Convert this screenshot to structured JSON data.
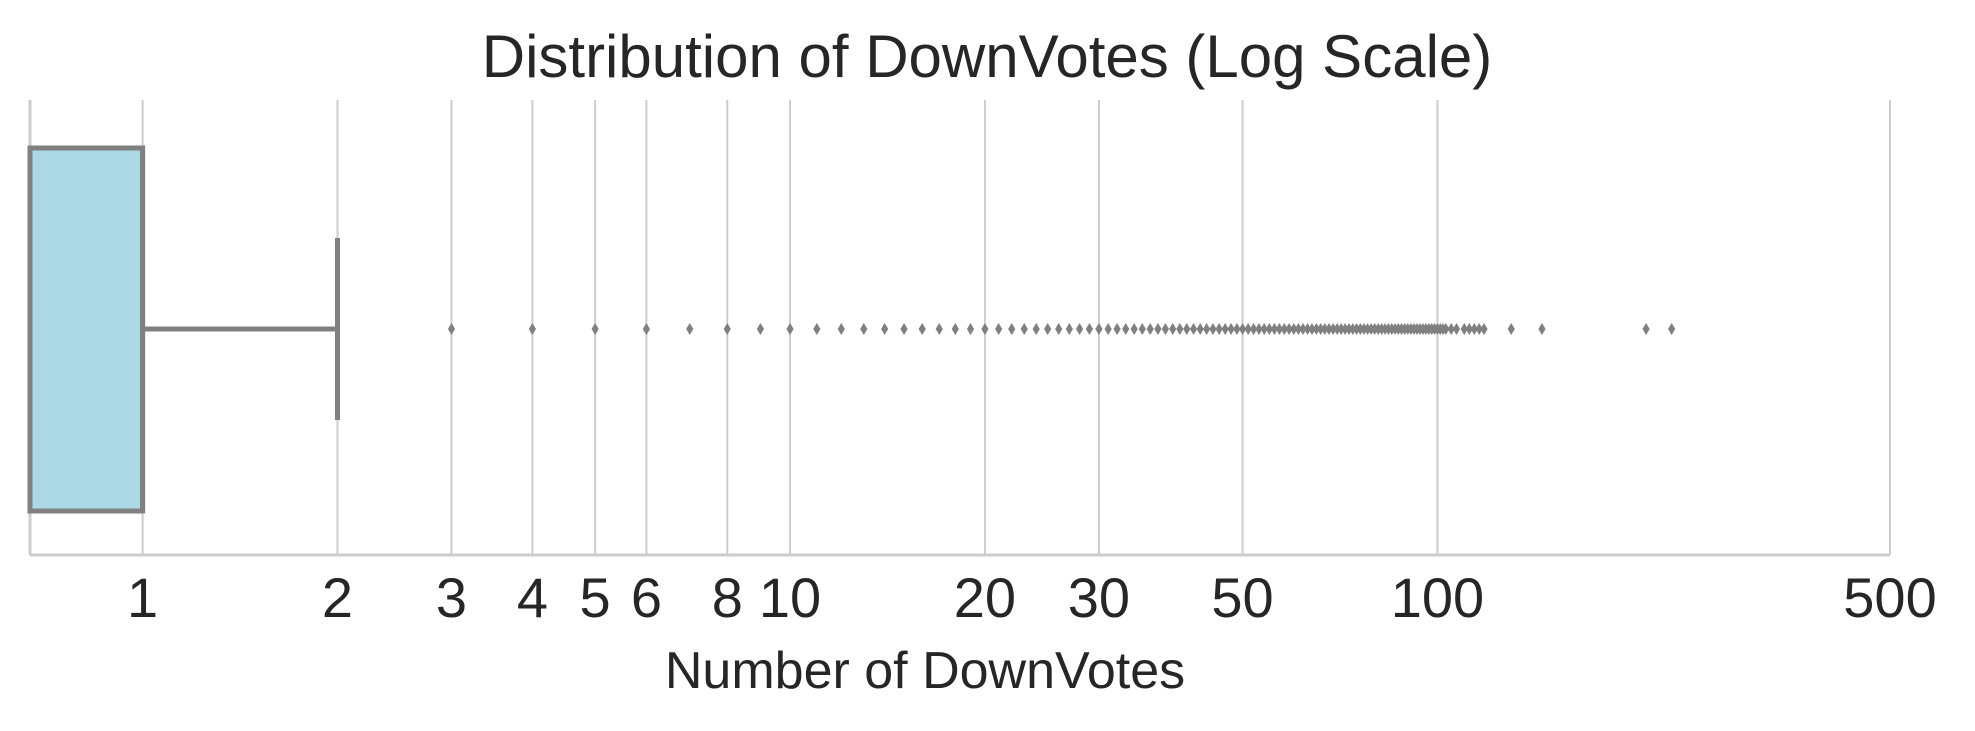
{
  "chart_data": {
    "type": "box",
    "title": "Distribution of DownVotes (Log Scale)",
    "xlabel": "Number of DownVotes",
    "ylabel": "",
    "x_scale": "log",
    "xlim": [
      0.67,
      500
    ],
    "grid": "vertical",
    "box": {
      "q1": 0.67,
      "median": 1,
      "q3": 1,
      "whisker_low": 0.67,
      "whisker_high": 2,
      "fill_color": "#add8e6",
      "line_color": "#808080"
    },
    "tick_values": [
      1,
      2,
      3,
      4,
      5,
      6,
      8,
      10,
      20,
      30,
      50,
      100,
      500
    ],
    "tick_labels": [
      "1",
      "2",
      "3",
      "4",
      "5",
      "6",
      "8",
      "10",
      "20",
      "30",
      "50",
      "100",
      "500"
    ],
    "outliers": [
      3,
      4,
      5,
      6,
      7,
      8,
      9,
      10,
      11,
      12,
      13,
      14,
      15,
      16,
      17,
      18,
      19,
      20,
      21,
      22,
      23,
      24,
      25,
      26,
      27,
      28,
      29,
      30,
      31,
      32,
      33,
      34,
      35,
      36,
      37,
      38,
      39,
      40,
      41,
      42,
      43,
      44,
      45,
      46,
      47,
      48,
      49,
      50,
      51,
      52,
      53,
      54,
      55,
      56,
      57,
      58,
      59,
      60,
      61,
      62,
      63,
      64,
      65,
      66,
      67,
      68,
      69,
      70,
      71,
      72,
      73,
      74,
      75,
      76,
      77,
      78,
      79,
      80,
      81,
      82,
      83,
      84,
      85,
      86,
      87,
      88,
      89,
      90,
      91,
      92,
      93,
      94,
      95,
      96,
      97,
      98,
      99,
      100,
      101,
      102,
      103,
      105,
      107,
      110,
      112,
      114,
      116,
      118,
      130,
      145,
      210,
      230
    ],
    "outlier_color": "#808080",
    "grid_color": "#cccccc"
  }
}
